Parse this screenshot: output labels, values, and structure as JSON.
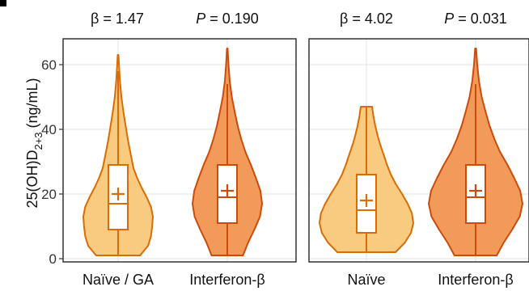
{
  "ylabel_base": "25(OH)D",
  "ylabel_sub": "2+3",
  "ylabel_unit": " (ng/mL)",
  "chart_data": [
    {
      "type": "violin",
      "ylim": [
        -1,
        68
      ],
      "yticks": [
        0,
        20,
        40,
        60
      ],
      "grid": true,
      "stats": {
        "beta_label": "β = 1.47",
        "p_var": "P",
        "p_value": " = 0.190"
      },
      "groups": [
        {
          "name": "Naïve / GA",
          "fill": "#f9cb80",
          "stroke": "#d96c05",
          "min": 1,
          "q1": 9,
          "median": 17,
          "mean": 20,
          "q3": 29,
          "max": 63,
          "whisker_high": 58,
          "density": [
            [
              1,
              0.6
            ],
            [
              4,
              0.82
            ],
            [
              7,
              0.9
            ],
            [
              10,
              0.93
            ],
            [
              13,
              0.95
            ],
            [
              16,
              0.9
            ],
            [
              19,
              0.78
            ],
            [
              22,
              0.64
            ],
            [
              25,
              0.52
            ],
            [
              28,
              0.42
            ],
            [
              32,
              0.35
            ],
            [
              36,
              0.28
            ],
            [
              40,
              0.22
            ],
            [
              45,
              0.15
            ],
            [
              50,
              0.09
            ],
            [
              55,
              0.05
            ],
            [
              60,
              0.025
            ],
            [
              63,
              0.01
            ]
          ]
        },
        {
          "name": "Interferon-β",
          "fill": "#f29a59",
          "stroke": "#cc4b0a",
          "min": 1,
          "q1": 11,
          "median": 19,
          "mean": 21,
          "q3": 29,
          "max": 65,
          "whisker_high": 54,
          "density": [
            [
              1,
              0.45
            ],
            [
              5,
              0.6
            ],
            [
              9,
              0.78
            ],
            [
              13,
              0.94
            ],
            [
              17,
              1.0
            ],
            [
              21,
              0.95
            ],
            [
              25,
              0.82
            ],
            [
              29,
              0.68
            ],
            [
              33,
              0.52
            ],
            [
              37,
              0.4
            ],
            [
              41,
              0.3
            ],
            [
              45,
              0.22
            ],
            [
              50,
              0.13
            ],
            [
              55,
              0.07
            ],
            [
              60,
              0.035
            ],
            [
              65,
              0.01
            ]
          ]
        }
      ]
    },
    {
      "type": "violin",
      "ylim": [
        -1,
        68
      ],
      "yticks": [
        0,
        20,
        40,
        60
      ],
      "grid": true,
      "stats": {
        "beta_label": "β = 4.02",
        "p_var": "P",
        "p_value": " = 0.031"
      },
      "groups": [
        {
          "name": "Naïve",
          "fill": "#f9cb80",
          "stroke": "#d96c05",
          "min": 2,
          "q1": 8,
          "median": 15,
          "mean": 18,
          "q3": 26,
          "max": 47,
          "whisker_high": 47,
          "density": [
            [
              2,
              0.62
            ],
            [
              5,
              0.82
            ],
            [
              8,
              0.95
            ],
            [
              11,
              1.0
            ],
            [
              14,
              0.97
            ],
            [
              17,
              0.88
            ],
            [
              20,
              0.76
            ],
            [
              23,
              0.63
            ],
            [
              26,
              0.52
            ],
            [
              29,
              0.44
            ],
            [
              32,
              0.37
            ],
            [
              35,
              0.3
            ],
            [
              38,
              0.24
            ],
            [
              41,
              0.19
            ],
            [
              44,
              0.15
            ],
            [
              47,
              0.12
            ]
          ]
        },
        {
          "name": "Interferon-β",
          "fill": "#f29a59",
          "stroke": "#cc4b0a",
          "min": 1,
          "q1": 11,
          "median": 19,
          "mean": 21,
          "q3": 29,
          "max": 65,
          "whisker_high": 54,
          "density": [
            [
              1,
              0.45
            ],
            [
              5,
              0.6
            ],
            [
              9,
              0.78
            ],
            [
              13,
              0.94
            ],
            [
              17,
              1.0
            ],
            [
              21,
              0.95
            ],
            [
              25,
              0.82
            ],
            [
              29,
              0.68
            ],
            [
              33,
              0.52
            ],
            [
              37,
              0.4
            ],
            [
              41,
              0.3
            ],
            [
              45,
              0.22
            ],
            [
              50,
              0.13
            ],
            [
              55,
              0.07
            ],
            [
              60,
              0.035
            ],
            [
              65,
              0.01
            ]
          ]
        }
      ]
    }
  ]
}
